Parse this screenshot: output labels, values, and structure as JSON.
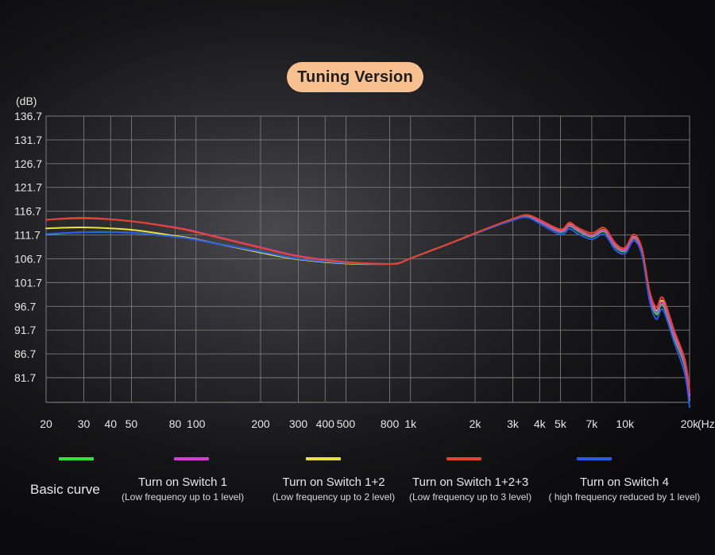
{
  "title": "Tuning Version",
  "chart_data": {
    "type": "line",
    "title": "Tuning Version",
    "ylabel": "(dB)",
    "xlabel": "(Hz)",
    "x_scale": "log",
    "xlim": [
      20,
      20000
    ],
    "ylim": [
      76.7,
      136.7
    ],
    "y_ticks": [
      136.7,
      131.7,
      126.7,
      121.7,
      116.7,
      111.7,
      106.7,
      101.7,
      96.7,
      91.7,
      86.7,
      81.7
    ],
    "x_ticks": [
      {
        "value": 20,
        "label": "20"
      },
      {
        "value": 30,
        "label": "30"
      },
      {
        "value": 40,
        "label": "40"
      },
      {
        "value": 50,
        "label": "50"
      },
      {
        "value": 80,
        "label": "80"
      },
      {
        "value": 100,
        "label": "100"
      },
      {
        "value": 200,
        "label": "200"
      },
      {
        "value": 300,
        "label": "300"
      },
      {
        "value": 400,
        "label": "400"
      },
      {
        "value": 500,
        "label": "500"
      },
      {
        "value": 800,
        "label": "800"
      },
      {
        "value": 1000,
        "label": "1k"
      },
      {
        "value": 2000,
        "label": "2k"
      },
      {
        "value": 3000,
        "label": "3k"
      },
      {
        "value": 4000,
        "label": "4k"
      },
      {
        "value": 5000,
        "label": "5k"
      },
      {
        "value": 7000,
        "label": "7k"
      },
      {
        "value": 10000,
        "label": "10k"
      },
      {
        "value": 20000,
        "label": "20k"
      }
    ],
    "grid": true,
    "legend_position": "bottom",
    "series": [
      {
        "name": "Basic curve",
        "subtitle": "",
        "color": "#2ee63a",
        "points": [
          [
            20,
            111.8
          ],
          [
            30,
            112.3
          ],
          [
            50,
            112.2
          ],
          [
            80,
            111.3
          ],
          [
            100,
            110.7
          ],
          [
            200,
            108.2
          ],
          [
            300,
            106.7
          ],
          [
            500,
            105.8
          ],
          [
            800,
            105.6
          ],
          [
            900,
            105.9
          ],
          [
            1000,
            106.8
          ],
          [
            1500,
            109.8
          ],
          [
            2000,
            112.0
          ],
          [
            3000,
            114.9
          ],
          [
            3500,
            115.6
          ],
          [
            4000,
            114.5
          ],
          [
            5000,
            112.3
          ],
          [
            5500,
            113.6
          ],
          [
            6000,
            112.6
          ],
          [
            7000,
            111.3
          ],
          [
            8000,
            112.4
          ],
          [
            9000,
            109.2
          ],
          [
            10000,
            108.3
          ],
          [
            11000,
            111.0
          ],
          [
            12000,
            108.0
          ],
          [
            13000,
            99.0
          ],
          [
            14000,
            95.0
          ],
          [
            15000,
            97.0
          ],
          [
            17000,
            90.0
          ],
          [
            19000,
            84.0
          ],
          [
            20000,
            77.0
          ]
        ]
      },
      {
        "name": "Turn on Switch 1",
        "subtitle": "(Low frequency up to 1 level)",
        "color": "#d93ad6",
        "points": [
          [
            20,
            114.9
          ],
          [
            30,
            115.3
          ],
          [
            50,
            114.6
          ],
          [
            80,
            113.3
          ],
          [
            100,
            112.4
          ],
          [
            200,
            109.1
          ],
          [
            300,
            107.3
          ],
          [
            500,
            106.0
          ],
          [
            800,
            105.6
          ],
          [
            900,
            105.9
          ],
          [
            1000,
            106.8
          ],
          [
            1500,
            109.8
          ],
          [
            2000,
            112.0
          ],
          [
            3000,
            115.0
          ],
          [
            3500,
            115.8
          ],
          [
            4000,
            114.6
          ],
          [
            5000,
            112.4
          ],
          [
            5500,
            113.8
          ],
          [
            6000,
            112.8
          ],
          [
            7000,
            111.5
          ],
          [
            8000,
            112.6
          ],
          [
            9000,
            109.4
          ],
          [
            10000,
            108.5
          ],
          [
            11000,
            111.2
          ],
          [
            12000,
            108.2
          ],
          [
            13000,
            99.3
          ],
          [
            14000,
            95.5
          ],
          [
            15000,
            97.5
          ],
          [
            17000,
            90.5
          ],
          [
            19000,
            84.5
          ],
          [
            20000,
            77.5
          ]
        ]
      },
      {
        "name": "Turn on Switch 1+2",
        "subtitle": "(Low frequency up to 2 level)",
        "color": "#e8e23a",
        "points": [
          [
            20,
            113.1
          ],
          [
            30,
            113.3
          ],
          [
            50,
            112.8
          ],
          [
            80,
            111.5
          ],
          [
            100,
            110.8
          ],
          [
            200,
            108.0
          ],
          [
            300,
            106.6
          ],
          [
            500,
            105.7
          ],
          [
            800,
            105.6
          ],
          [
            900,
            105.9
          ],
          [
            1000,
            106.8
          ],
          [
            1500,
            109.8
          ],
          [
            2000,
            112.0
          ],
          [
            3000,
            115.0
          ],
          [
            3500,
            115.8
          ],
          [
            4000,
            114.6
          ],
          [
            5000,
            112.5
          ],
          [
            5500,
            113.9
          ],
          [
            6000,
            112.9
          ],
          [
            7000,
            111.6
          ],
          [
            8000,
            112.7
          ],
          [
            9000,
            109.5
          ],
          [
            10000,
            108.6
          ],
          [
            11000,
            111.3
          ],
          [
            12000,
            108.3
          ],
          [
            13000,
            99.5
          ],
          [
            14000,
            95.8
          ],
          [
            15000,
            97.8
          ],
          [
            17000,
            90.8
          ],
          [
            19000,
            84.8
          ],
          [
            20000,
            78.0
          ]
        ]
      },
      {
        "name": "Turn on Switch 1+2+3",
        "subtitle": "(Low frequency up to 3 level)",
        "color": "#e8432a",
        "points": [
          [
            20,
            114.9
          ],
          [
            30,
            115.2
          ],
          [
            50,
            114.6
          ],
          [
            80,
            113.2
          ],
          [
            100,
            112.3
          ],
          [
            200,
            109.0
          ],
          [
            300,
            107.2
          ],
          [
            500,
            106.0
          ],
          [
            800,
            105.6
          ],
          [
            900,
            105.9
          ],
          [
            1000,
            106.8
          ],
          [
            1500,
            109.8
          ],
          [
            2000,
            112.1
          ],
          [
            3000,
            115.1
          ],
          [
            3500,
            115.9
          ],
          [
            4000,
            114.9
          ],
          [
            5000,
            112.9
          ],
          [
            5500,
            114.3
          ],
          [
            6000,
            113.3
          ],
          [
            7000,
            112.1
          ],
          [
            8000,
            113.2
          ],
          [
            9000,
            110.0
          ],
          [
            10000,
            109.0
          ],
          [
            11000,
            111.8
          ],
          [
            12000,
            108.8
          ],
          [
            13000,
            100.0
          ],
          [
            14000,
            96.5
          ],
          [
            15000,
            98.5
          ],
          [
            17000,
            91.5
          ],
          [
            19000,
            85.5
          ],
          [
            20000,
            79.0
          ]
        ]
      },
      {
        "name": "Turn on Switch 4",
        "subtitle": "( high frequency reduced by 1 level)",
        "color": "#2a5be8",
        "points": [
          [
            20,
            111.9
          ],
          [
            30,
            112.3
          ],
          [
            50,
            112.2
          ],
          [
            80,
            111.3
          ],
          [
            100,
            110.7
          ],
          [
            200,
            108.2
          ],
          [
            300,
            106.7
          ],
          [
            500,
            105.8
          ],
          [
            800,
            105.6
          ],
          [
            900,
            105.9
          ],
          [
            1000,
            106.8
          ],
          [
            1500,
            109.8
          ],
          [
            2000,
            112.0
          ],
          [
            3000,
            114.8
          ],
          [
            3500,
            115.4
          ],
          [
            4000,
            114.1
          ],
          [
            5000,
            111.8
          ],
          [
            5500,
            113.0
          ],
          [
            6000,
            112.0
          ],
          [
            7000,
            110.8
          ],
          [
            8000,
            111.8
          ],
          [
            9000,
            108.6
          ],
          [
            10000,
            107.8
          ],
          [
            11000,
            110.5
          ],
          [
            12000,
            107.4
          ],
          [
            13000,
            98.0
          ],
          [
            14000,
            94.0
          ],
          [
            15000,
            96.0
          ],
          [
            17000,
            89.0
          ],
          [
            19000,
            82.5
          ],
          [
            20000,
            75.5
          ]
        ]
      }
    ]
  }
}
